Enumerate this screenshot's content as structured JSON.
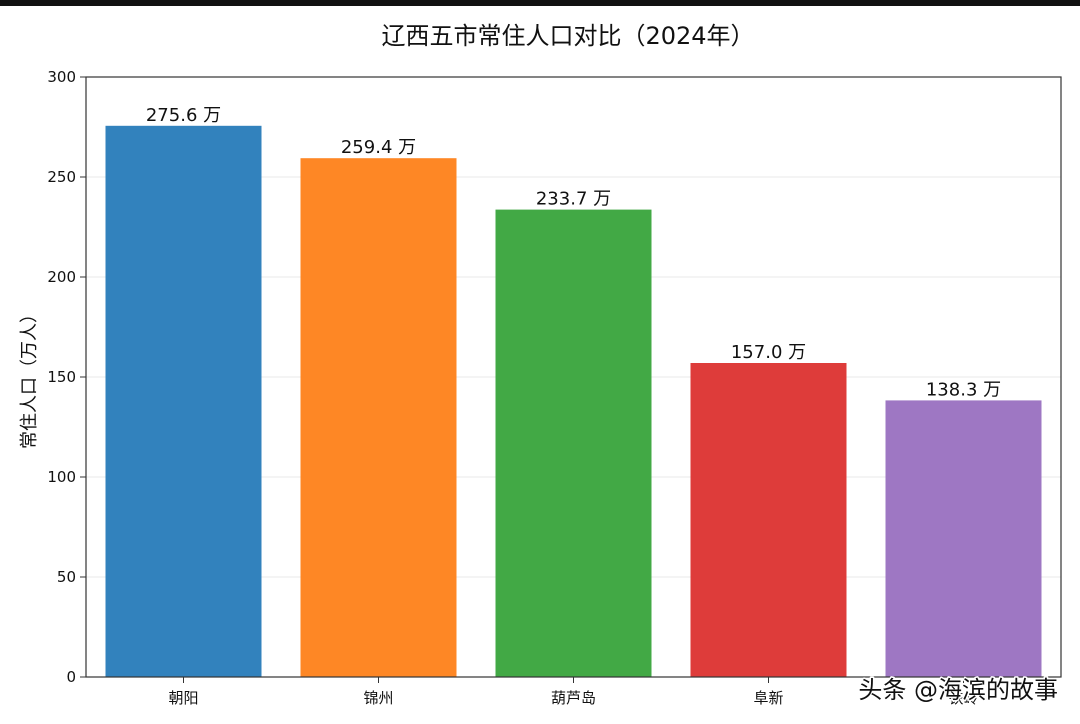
{
  "watermark": "头条 @海滨的故事",
  "colors": {
    "bars": [
      "#3282bd",
      "#fe8725",
      "#42a945",
      "#de3c3a",
      "#9e77c3"
    ],
    "grid": "#e8e8e8",
    "axis": "#333333"
  },
  "chart_data": {
    "type": "bar",
    "title": "辽西五市常住人口对比（2024年）",
    "xlabel": "",
    "ylabel": "常住人口（万人）",
    "categories": [
      "朝阳",
      "锦州",
      "葫芦岛",
      "阜新",
      "铁岭"
    ],
    "values": [
      275.6,
      259.4,
      233.7,
      157.0,
      138.3
    ],
    "value_labels": [
      "275.6 万",
      "259.4 万",
      "233.7 万",
      "157.0 万",
      "138.3 万"
    ],
    "ylim": [
      0,
      300
    ],
    "yticks": [
      0,
      50,
      100,
      150,
      200,
      250,
      300
    ],
    "grid": true,
    "legend": "none"
  }
}
